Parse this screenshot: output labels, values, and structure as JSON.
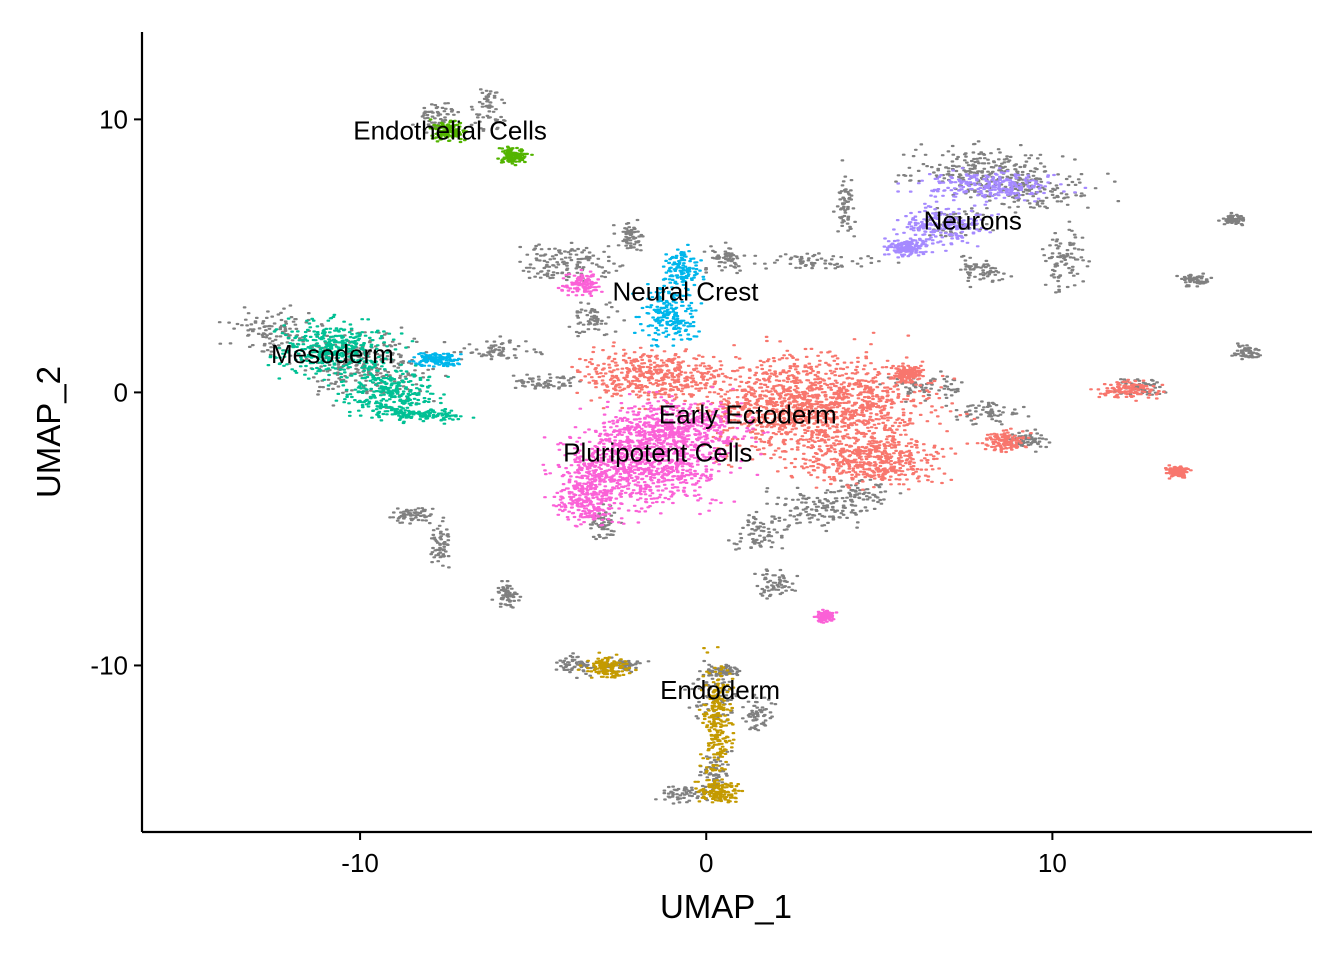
{
  "chart_data": {
    "type": "scatter",
    "title": "",
    "xlabel": "UMAP_1",
    "ylabel": "UMAP_2",
    "xlim": [
      -16.3,
      17.5
    ],
    "ylim": [
      -16.1,
      13.2
    ],
    "x_ticks": [
      -10,
      0,
      10
    ],
    "x_tick_labels": [
      "-10",
      "0",
      "10"
    ],
    "y_ticks": [
      -10,
      0,
      10
    ],
    "y_tick_labels": [
      "-10",
      "0",
      "10"
    ],
    "grid": false,
    "legend": "none",
    "background_color": "#808080",
    "clusters": [
      {
        "name": "Early Ectoderm",
        "color": "#F8766D",
        "label_x": 1.2,
        "label_y": -0.8,
        "regions": [
          [
            3.2,
            -0.5,
            3.2,
            1.8
          ],
          [
            4.8,
            -2.5,
            2.0,
            0.9
          ],
          [
            -1.5,
            0.6,
            2.0,
            0.9
          ],
          [
            12.2,
            0.1,
            0.9,
            0.35
          ],
          [
            8.6,
            -1.8,
            0.6,
            0.35
          ],
          [
            5.8,
            0.7,
            0.4,
            0.3
          ],
          [
            13.6,
            -2.9,
            0.3,
            0.2
          ]
        ]
      },
      {
        "name": "Endoderm",
        "color": "#C49A00",
        "label_x": 0.4,
        "label_y": -10.9,
        "regions": [
          [
            0.3,
            -12.0,
            0.45,
            2.2
          ],
          [
            0.4,
            -14.6,
            0.6,
            0.4
          ],
          [
            -2.9,
            -10.1,
            0.6,
            0.4
          ]
        ]
      },
      {
        "name": "Endothelial Cells",
        "color": "#53B400",
        "label_x": -7.4,
        "label_y": 9.6,
        "regions": [
          [
            -7.5,
            9.6,
            0.5,
            0.4
          ],
          [
            -5.6,
            8.7,
            0.4,
            0.3
          ]
        ]
      },
      {
        "name": "Mesoderm",
        "color": "#00C094",
        "label_x": -10.8,
        "label_y": 1.4,
        "regions": [
          [
            -10.8,
            1.6,
            1.6,
            1.0
          ],
          [
            -9.2,
            0.0,
            1.3,
            0.9
          ],
          [
            -8.1,
            -0.8,
            1.2,
            0.25
          ]
        ]
      },
      {
        "name": "Neural Crest",
        "color": "#00B6EB",
        "label_x": -0.6,
        "label_y": 3.7,
        "regions": [
          [
            -0.7,
            4.5,
            0.5,
            0.8
          ],
          [
            -1.1,
            2.8,
            0.8,
            1.0
          ],
          [
            -7.8,
            1.2,
            0.6,
            0.25
          ]
        ]
      },
      {
        "name": "Neurons",
        "color": "#A58AFF",
        "label_x": 7.7,
        "label_y": 6.3,
        "regions": [
          [
            8.2,
            7.6,
            2.0,
            0.5
          ],
          [
            6.8,
            6.1,
            1.2,
            0.7
          ],
          [
            5.8,
            5.3,
            0.6,
            0.3
          ]
        ]
      },
      {
        "name": "Pluripotent Cells",
        "color": "#FB61D7",
        "label_x": -1.4,
        "label_y": -2.2,
        "regions": [
          [
            -1.8,
            -2.6,
            2.3,
            1.6
          ],
          [
            -0.8,
            -1.3,
            1.9,
            1.0
          ],
          [
            -3.4,
            -3.9,
            1.0,
            1.0
          ],
          [
            -3.6,
            4.0,
            0.5,
            0.4
          ],
          [
            3.4,
            -8.2,
            0.25,
            0.2
          ]
        ]
      }
    ],
    "unlabeled_regions": [
      [
        -12.5,
        2.2,
        1.2,
        0.8
      ],
      [
        -9.8,
        0.9,
        1.8,
        1.2
      ],
      [
        -7.8,
        10.1,
        0.6,
        0.5
      ],
      [
        -6.3,
        10.4,
        0.4,
        0.9
      ],
      [
        -4.0,
        4.7,
        1.4,
        0.8
      ],
      [
        -3.3,
        2.7,
        0.7,
        0.7
      ],
      [
        0.5,
        4.9,
        0.6,
        0.4
      ],
      [
        -6.0,
        1.5,
        1.2,
        0.45
      ],
      [
        -4.6,
        0.4,
        0.9,
        0.25
      ],
      [
        -2.2,
        5.7,
        0.4,
        0.5
      ],
      [
        3.0,
        4.8,
        1.8,
        0.3
      ],
      [
        4.0,
        6.8,
        0.25,
        1.2
      ],
      [
        3.2,
        -4.2,
        1.5,
        0.7
      ],
      [
        4.5,
        -3.7,
        0.8,
        0.6
      ],
      [
        1.5,
        -5.1,
        0.8,
        0.7
      ],
      [
        -3.0,
        -4.8,
        0.4,
        0.6
      ],
      [
        2.0,
        -7.0,
        0.6,
        0.5
      ],
      [
        7.8,
        8.2,
        2.0,
        0.8
      ],
      [
        9.2,
        7.5,
        1.8,
        0.8
      ],
      [
        7.1,
        6.2,
        1.0,
        0.6
      ],
      [
        10.3,
        4.9,
        0.6,
        1.2
      ],
      [
        8.0,
        4.5,
        0.7,
        0.5
      ],
      [
        6.4,
        0.2,
        1.2,
        0.5
      ],
      [
        8.2,
        -0.7,
        0.9,
        0.4
      ],
      [
        9.3,
        -1.7,
        0.5,
        0.4
      ],
      [
        15.2,
        6.3,
        0.35,
        0.2
      ],
      [
        14.1,
        4.1,
        0.4,
        0.2
      ],
      [
        15.6,
        1.5,
        0.35,
        0.25
      ],
      [
        12.5,
        0.2,
        0.7,
        0.3
      ],
      [
        -8.5,
        -4.5,
        0.5,
        0.3
      ],
      [
        -7.7,
        -5.5,
        0.35,
        0.9
      ],
      [
        -5.8,
        -7.4,
        0.3,
        0.4
      ],
      [
        0.3,
        -11.0,
        0.7,
        1.1
      ],
      [
        0.2,
        -13.8,
        0.5,
        0.6
      ],
      [
        1.5,
        -11.8,
        0.4,
        0.7
      ],
      [
        -3.8,
        -10.0,
        0.5,
        0.35
      ],
      [
        -2.5,
        -10.0,
        0.6,
        0.25
      ],
      [
        0.5,
        -10.2,
        0.4,
        0.2
      ],
      [
        -0.6,
        -14.7,
        0.8,
        0.3
      ]
    ]
  }
}
